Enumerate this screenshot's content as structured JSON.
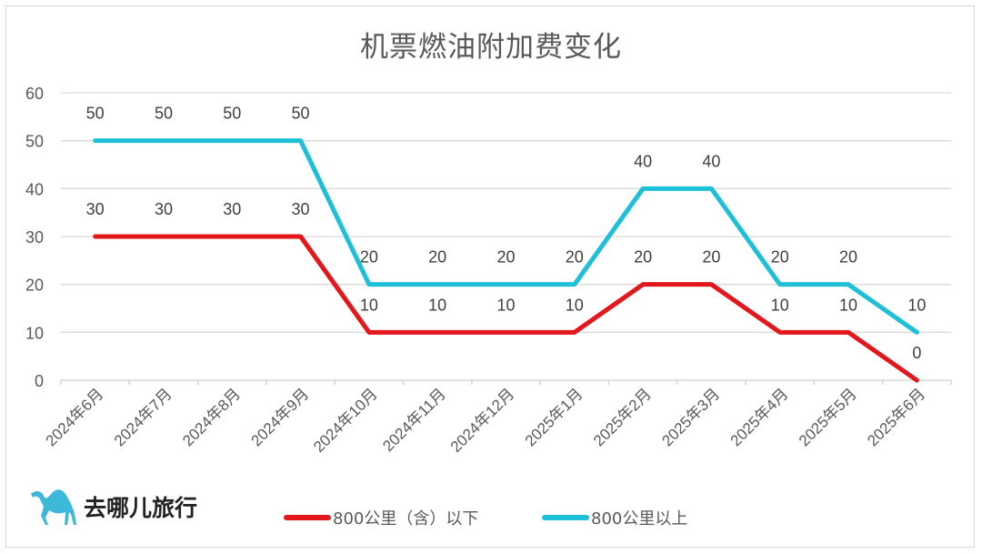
{
  "title": "机票燃油附加费变化",
  "logo": {
    "icon": "camel-icon",
    "text": "去哪儿旅行",
    "color": "#3db8d8"
  },
  "colors": {
    "series_1": "#e3161b",
    "series_2": "#1ec0d8",
    "grid": "#d9d9d9",
    "text": "#595959"
  },
  "legend": [
    {
      "label": "800公里（含）以下",
      "color": "#e3161b"
    },
    {
      "label": "800公里以上",
      "color": "#1ec0d8"
    }
  ],
  "chart_data": {
    "type": "line",
    "title": "机票燃油附加费变化",
    "xlabel": "",
    "ylabel": "",
    "categories": [
      "2024年6月",
      "2024年7月",
      "2024年8月",
      "2024年9月",
      "2024年10月",
      "2024年11月",
      "2024年12月",
      "2025年1月",
      "2025年2月",
      "2025年3月",
      "2025年4月",
      "2025年5月",
      "2025年6月"
    ],
    "series": [
      {
        "name": "800公里（含）以下",
        "color": "#e3161b",
        "values": [
          30,
          30,
          30,
          30,
          10,
          10,
          10,
          10,
          20,
          20,
          10,
          10,
          0
        ]
      },
      {
        "name": "800公里以上",
        "color": "#1ec0d8",
        "values": [
          50,
          50,
          50,
          50,
          20,
          20,
          20,
          20,
          40,
          40,
          20,
          20,
          10
        ]
      }
    ],
    "ylim": [
      0,
      60
    ],
    "yticks": [
      0,
      10,
      20,
      30,
      40,
      50,
      60
    ],
    "grid": true,
    "data_labels": true,
    "legend_position": "bottom"
  }
}
